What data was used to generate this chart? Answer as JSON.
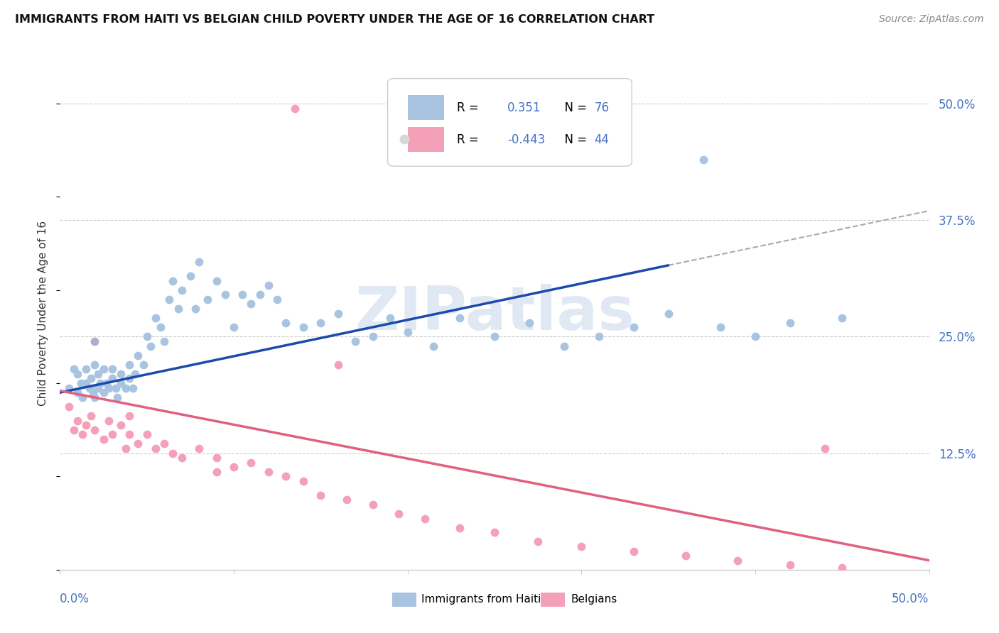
{
  "title": "IMMIGRANTS FROM HAITI VS BELGIAN CHILD POVERTY UNDER THE AGE OF 16 CORRELATION CHART",
  "source": "Source: ZipAtlas.com",
  "ylabel": "Child Poverty Under the Age of 16",
  "r_haiti": 0.351,
  "n_haiti": 76,
  "r_belgian": -0.443,
  "n_belgian": 44,
  "color_haiti": "#a8c4e0",
  "color_belgian": "#f4a0b8",
  "color_haiti_line": "#1a4aaa",
  "color_belgian_line": "#e06080",
  "color_dashed": "#aaaaaa",
  "color_blue_text": "#4472c4",
  "color_grid": "#cccccc",
  "background": "#ffffff",
  "watermark": "ZIPatlas",
  "watermark_color": "#c8d8ea",
  "xlim": [
    0.0,
    0.5
  ],
  "ylim": [
    0.0,
    0.55
  ],
  "ytick_vals": [
    0.5,
    0.375,
    0.25,
    0.125
  ],
  "ytick_labels": [
    "50.0%",
    "37.5%",
    "25.0%",
    "12.5%"
  ],
  "xtick_left_label": "0.0%",
  "xtick_right_label": "50.0%",
  "legend_haiti_text": "R =  0.351  N = 76",
  "legend_belgian_text": "R = -0.443  N = 44",
  "bottom_legend_haiti": "Immigrants from Haiti",
  "bottom_legend_belgian": "Belgians",
  "haiti_x": [
    0.005,
    0.008,
    0.01,
    0.01,
    0.012,
    0.013,
    0.015,
    0.015,
    0.017,
    0.018,
    0.019,
    0.02,
    0.02,
    0.022,
    0.022,
    0.023,
    0.025,
    0.025,
    0.027,
    0.028,
    0.03,
    0.03,
    0.032,
    0.033,
    0.035,
    0.035,
    0.038,
    0.04,
    0.04,
    0.042,
    0.043,
    0.045,
    0.048,
    0.05,
    0.052,
    0.055,
    0.058,
    0.06,
    0.063,
    0.065,
    0.068,
    0.07,
    0.075,
    0.078,
    0.08,
    0.085,
    0.09,
    0.095,
    0.1,
    0.105,
    0.11,
    0.115,
    0.12,
    0.125,
    0.13,
    0.14,
    0.15,
    0.16,
    0.17,
    0.18,
    0.19,
    0.2,
    0.215,
    0.23,
    0.25,
    0.27,
    0.29,
    0.31,
    0.33,
    0.35,
    0.38,
    0.4,
    0.42,
    0.45,
    0.37,
    0.26
  ],
  "haiti_y": [
    0.195,
    0.215,
    0.19,
    0.21,
    0.2,
    0.185,
    0.2,
    0.215,
    0.195,
    0.205,
    0.19,
    0.185,
    0.22,
    0.195,
    0.21,
    0.2,
    0.19,
    0.215,
    0.2,
    0.195,
    0.205,
    0.215,
    0.195,
    0.185,
    0.21,
    0.2,
    0.195,
    0.205,
    0.22,
    0.195,
    0.21,
    0.23,
    0.22,
    0.25,
    0.24,
    0.27,
    0.26,
    0.245,
    0.29,
    0.31,
    0.28,
    0.3,
    0.315,
    0.28,
    0.33,
    0.29,
    0.31,
    0.295,
    0.26,
    0.295,
    0.285,
    0.295,
    0.305,
    0.29,
    0.265,
    0.26,
    0.265,
    0.275,
    0.245,
    0.25,
    0.27,
    0.255,
    0.24,
    0.27,
    0.25,
    0.265,
    0.24,
    0.25,
    0.26,
    0.275,
    0.26,
    0.25,
    0.265,
    0.27,
    0.44,
    0.44
  ],
  "belgian_x": [
    0.005,
    0.008,
    0.01,
    0.013,
    0.015,
    0.018,
    0.02,
    0.025,
    0.028,
    0.03,
    0.035,
    0.038,
    0.04,
    0.045,
    0.05,
    0.055,
    0.06,
    0.065,
    0.07,
    0.08,
    0.09,
    0.1,
    0.11,
    0.12,
    0.13,
    0.14,
    0.15,
    0.165,
    0.18,
    0.195,
    0.21,
    0.23,
    0.25,
    0.275,
    0.3,
    0.33,
    0.36,
    0.39,
    0.42,
    0.45,
    0.16,
    0.09,
    0.04,
    0.44
  ],
  "belgian_y": [
    0.175,
    0.15,
    0.16,
    0.145,
    0.155,
    0.165,
    0.15,
    0.14,
    0.16,
    0.145,
    0.155,
    0.13,
    0.145,
    0.135,
    0.145,
    0.13,
    0.135,
    0.125,
    0.12,
    0.13,
    0.12,
    0.11,
    0.115,
    0.105,
    0.1,
    0.095,
    0.08,
    0.075,
    0.07,
    0.06,
    0.055,
    0.045,
    0.04,
    0.03,
    0.025,
    0.02,
    0.015,
    0.01,
    0.005,
    0.002,
    0.22,
    0.105,
    0.165,
    0.13
  ],
  "purple_x": [
    0.02
  ],
  "purple_y": [
    0.245
  ]
}
